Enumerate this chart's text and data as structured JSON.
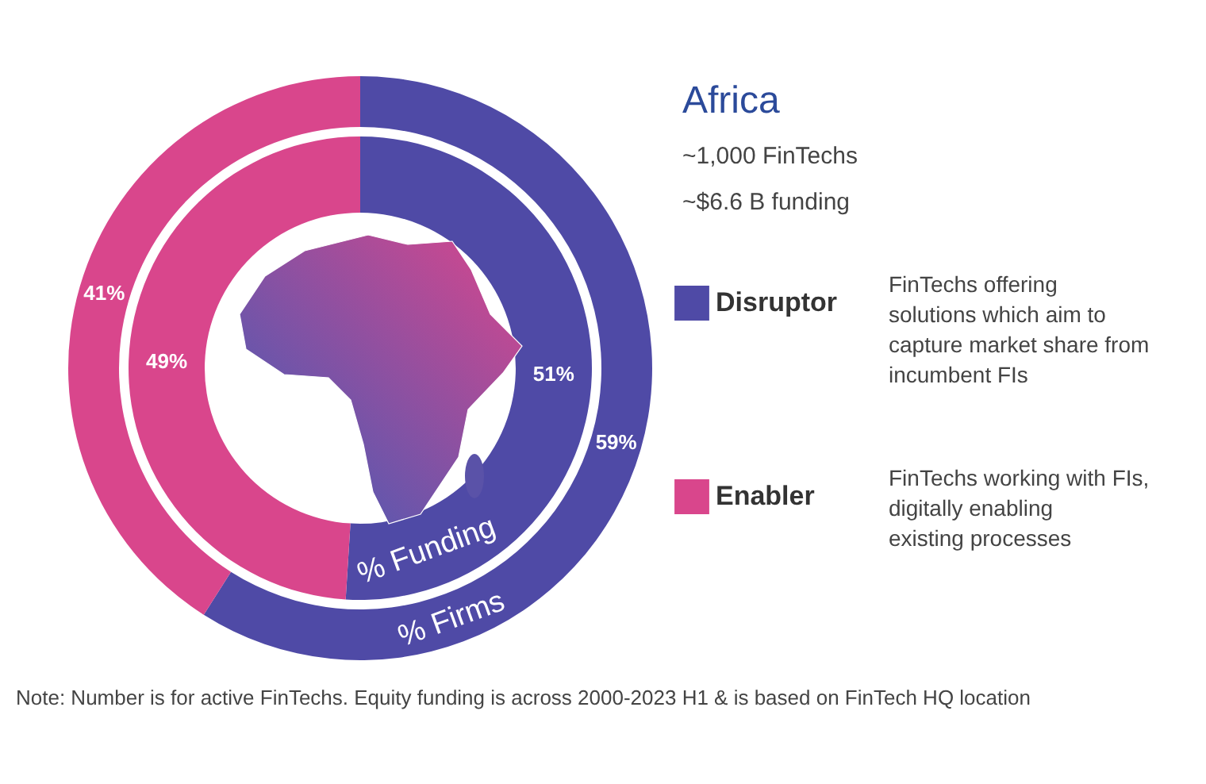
{
  "chart_data": {
    "type": "donut",
    "title": "Africa",
    "categories": [
      "Disruptor",
      "Enabler"
    ],
    "colors": [
      "#4f4aa6",
      "#d9468c"
    ],
    "series": [
      {
        "name": "% Firms",
        "values": [
          59,
          41
        ],
        "value_labels": [
          "59%",
          "41%"
        ]
      },
      {
        "name": "% Funding",
        "values": [
          51,
          49
        ],
        "value_labels": [
          "51%",
          "49%"
        ]
      }
    ],
    "legend": "right",
    "annotations": [
      "~1,000 FinTechs",
      "~$6.6 B funding",
      "FinTechs offering solutions which aim to capture market share from incumbent FIs",
      "FinTechs working with FIs, digitally enabling existing processes",
      "Note: Number is for active FinTechs. Equity funding is across 2000-2023 H1 & is based on FinTech HQ location"
    ]
  }
}
